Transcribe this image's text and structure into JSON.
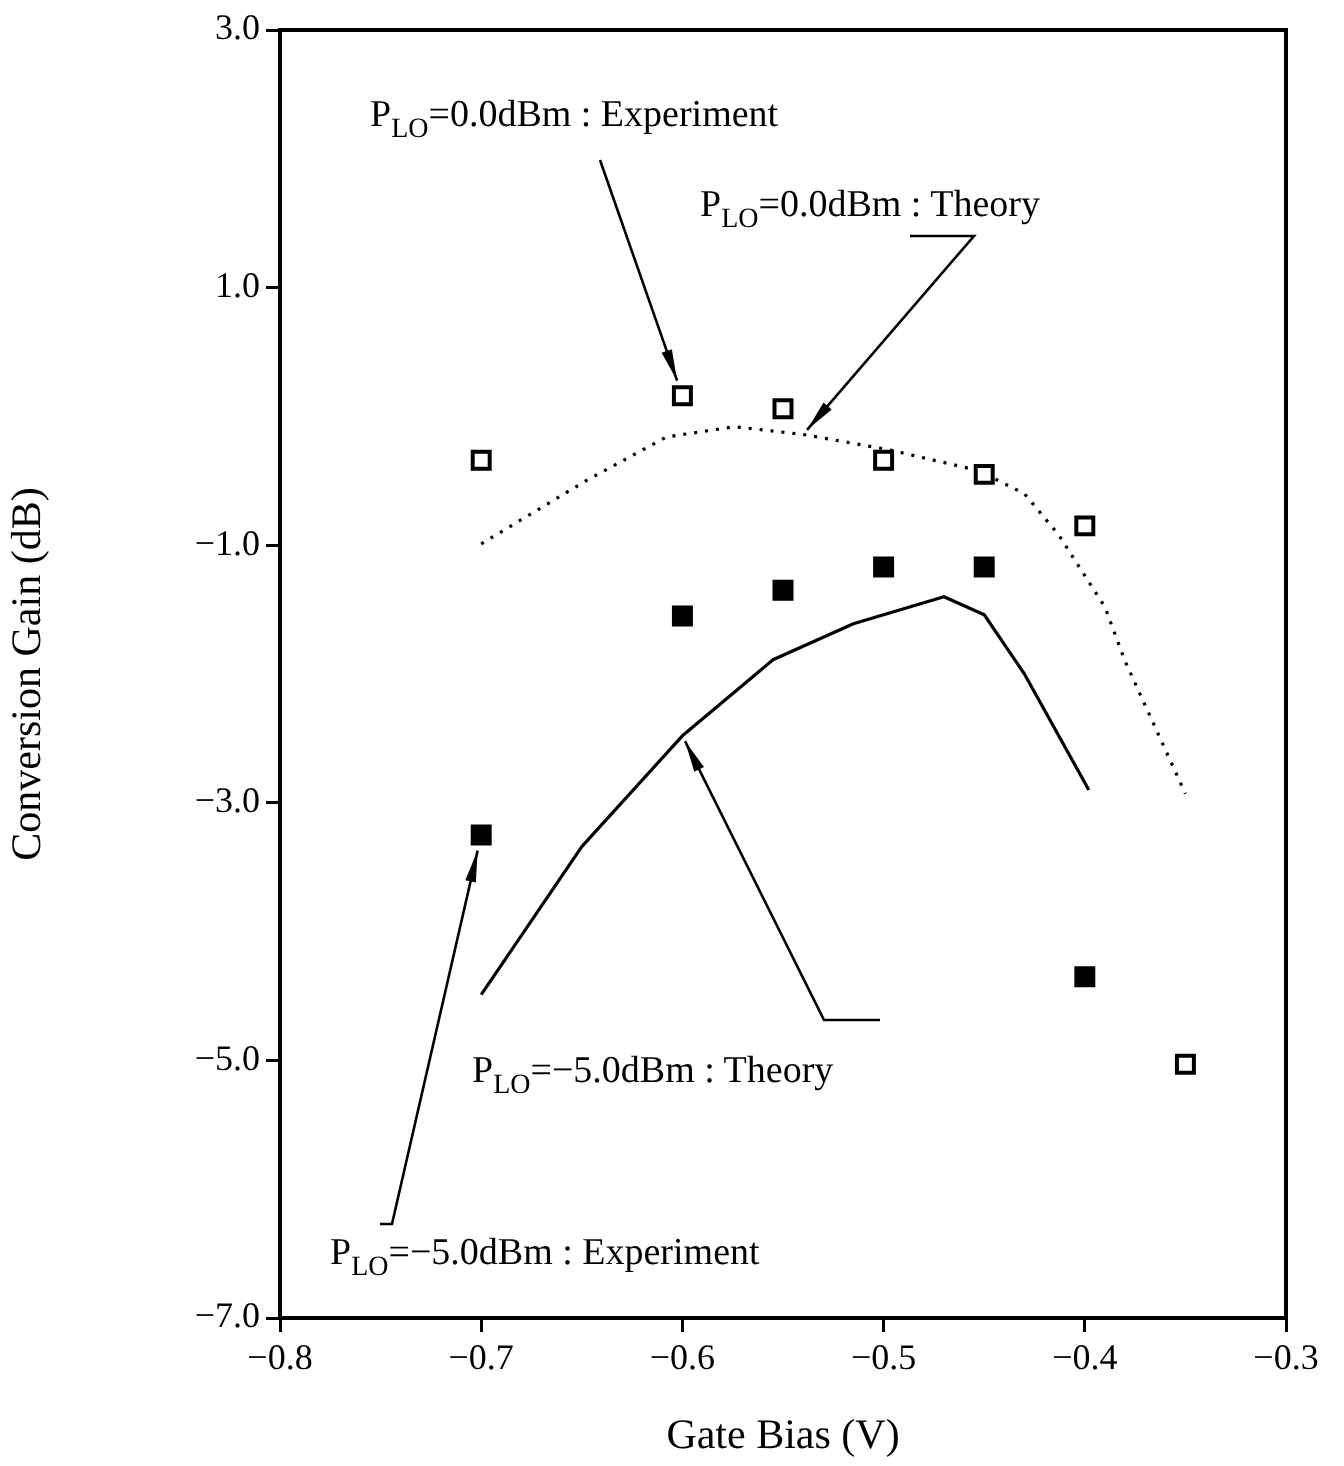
{
  "chart_data": {
    "type": "scatter",
    "xlabel": "Gate Bias (V)",
    "ylabel": "Conversion Gain (dB)",
    "xlim": [
      -0.8,
      -0.3
    ],
    "ylim": [
      -7,
      3
    ],
    "xticks": [
      {
        "value": -0.8,
        "label": "−0.8"
      },
      {
        "value": -0.7,
        "label": "−0.7"
      },
      {
        "value": -0.6,
        "label": "−0.6"
      },
      {
        "value": -0.5,
        "label": "−0.5"
      },
      {
        "value": -0.4,
        "label": "−0.4"
      },
      {
        "value": -0.3,
        "label": "−0.3"
      }
    ],
    "yticks": [
      {
        "value": 3,
        "label": "3.0"
      },
      {
        "value": 1,
        "label": "1.0"
      },
      {
        "value": -1,
        "label": "−1.0"
      },
      {
        "value": -3,
        "label": "−3.0"
      },
      {
        "value": -5,
        "label": "−5.0"
      },
      {
        "value": -7,
        "label": "−7.0"
      }
    ],
    "grid": false,
    "legend": false,
    "series": [
      {
        "name": "P$_{LO}$=0.0dBm : Experiment",
        "type": "scatter",
        "marker": "square",
        "color": "#ffffff",
        "x": [
          -0.7,
          -0.6,
          -0.55,
          -0.5,
          -0.45,
          -0.4,
          -0.35
        ],
        "values": [
          -0.34,
          0.16,
          0.06,
          -0.34,
          -0.45,
          -0.85,
          -5.03
        ]
      },
      {
        "name": "P$_{LO}$=0.0dBm : Theory",
        "type": "line",
        "marker": "none",
        "line_style": "dotted",
        "color": "#000000",
        "x": [
          -0.7,
          -0.648,
          -0.608,
          -0.574,
          -0.54,
          -0.497,
          -0.453,
          -0.43,
          -0.413,
          -0.39,
          -0.38,
          -0.35
        ],
        "values": [
          -0.99,
          -0.5,
          -0.16,
          -0.08,
          -0.14,
          -0.26,
          -0.42,
          -0.6,
          -0.92,
          -1.48,
          -1.9,
          -2.93
        ]
      },
      {
        "name": "P$_{LO}$=−5.0dBm : Theory",
        "type": "line",
        "marker": "none",
        "line_style": "solid",
        "color": "#000000",
        "x": [
          -0.7,
          -0.65,
          -0.6,
          -0.555,
          -0.515,
          -0.47,
          -0.45,
          -0.43,
          -0.398
        ],
        "values": [
          -4.49,
          -3.34,
          -2.48,
          -1.89,
          -1.61,
          -1.4,
          -1.54,
          -2.0,
          -2.9
        ]
      },
      {
        "name": "P$_{LO}$=−5.0dBm : Experiment",
        "type": "scatter",
        "marker": "square",
        "color": "#000000",
        "x": [
          -0.7,
          -0.6,
          -0.55,
          -0.5,
          -0.45,
          -0.4
        ],
        "values": [
          -3.25,
          -1.55,
          -1.35,
          -1.17,
          -1.17,
          -4.35
        ]
      }
    ]
  }
}
